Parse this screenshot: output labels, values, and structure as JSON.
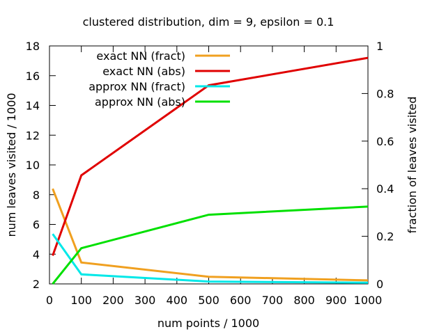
{
  "chart_data": {
    "type": "line",
    "title": "clustered distribution, dim = 9, epsilon = 0.1",
    "xlabel": "num points / 1000",
    "ylabel": "num leaves visited / 1000",
    "y2label": "fraction of leaves visited",
    "xlim": [
      0,
      1000
    ],
    "ylim": [
      2,
      18
    ],
    "y2lim": [
      0,
      1
    ],
    "xticks": [
      0,
      100,
      200,
      300,
      400,
      500,
      600,
      700,
      800,
      900,
      1000
    ],
    "yticks": [
      2,
      4,
      6,
      8,
      10,
      12,
      14,
      16,
      18
    ],
    "y2ticks": [
      0,
      0.2,
      0.4,
      0.6,
      0.8,
      1
    ],
    "grid": false,
    "legend_position": "top-left",
    "series": [
      {
        "name": "exact NN (fract)",
        "axis": "y2",
        "color": "#f0a020",
        "x": [
          10,
          100,
          500,
          1000
        ],
        "y": [
          0.4,
          0.09,
          0.03,
          0.015
        ]
      },
      {
        "name": "exact NN (abs)",
        "axis": "y",
        "color": "#e00000",
        "x": [
          10,
          100,
          500,
          1000
        ],
        "y": [
          3.9,
          9.3,
          15.35,
          17.2
        ]
      },
      {
        "name": "approx NN (fract)",
        "axis": "y2",
        "color": "#00e8e8",
        "x": [
          10,
          100,
          500,
          1000
        ],
        "y": [
          0.21,
          0.04,
          0.01,
          0.005
        ]
      },
      {
        "name": "approx NN (abs)",
        "axis": "y",
        "color": "#00e000",
        "x": [
          10,
          100,
          500,
          1000
        ],
        "y": [
          2.0,
          4.4,
          6.65,
          7.2
        ]
      }
    ]
  }
}
